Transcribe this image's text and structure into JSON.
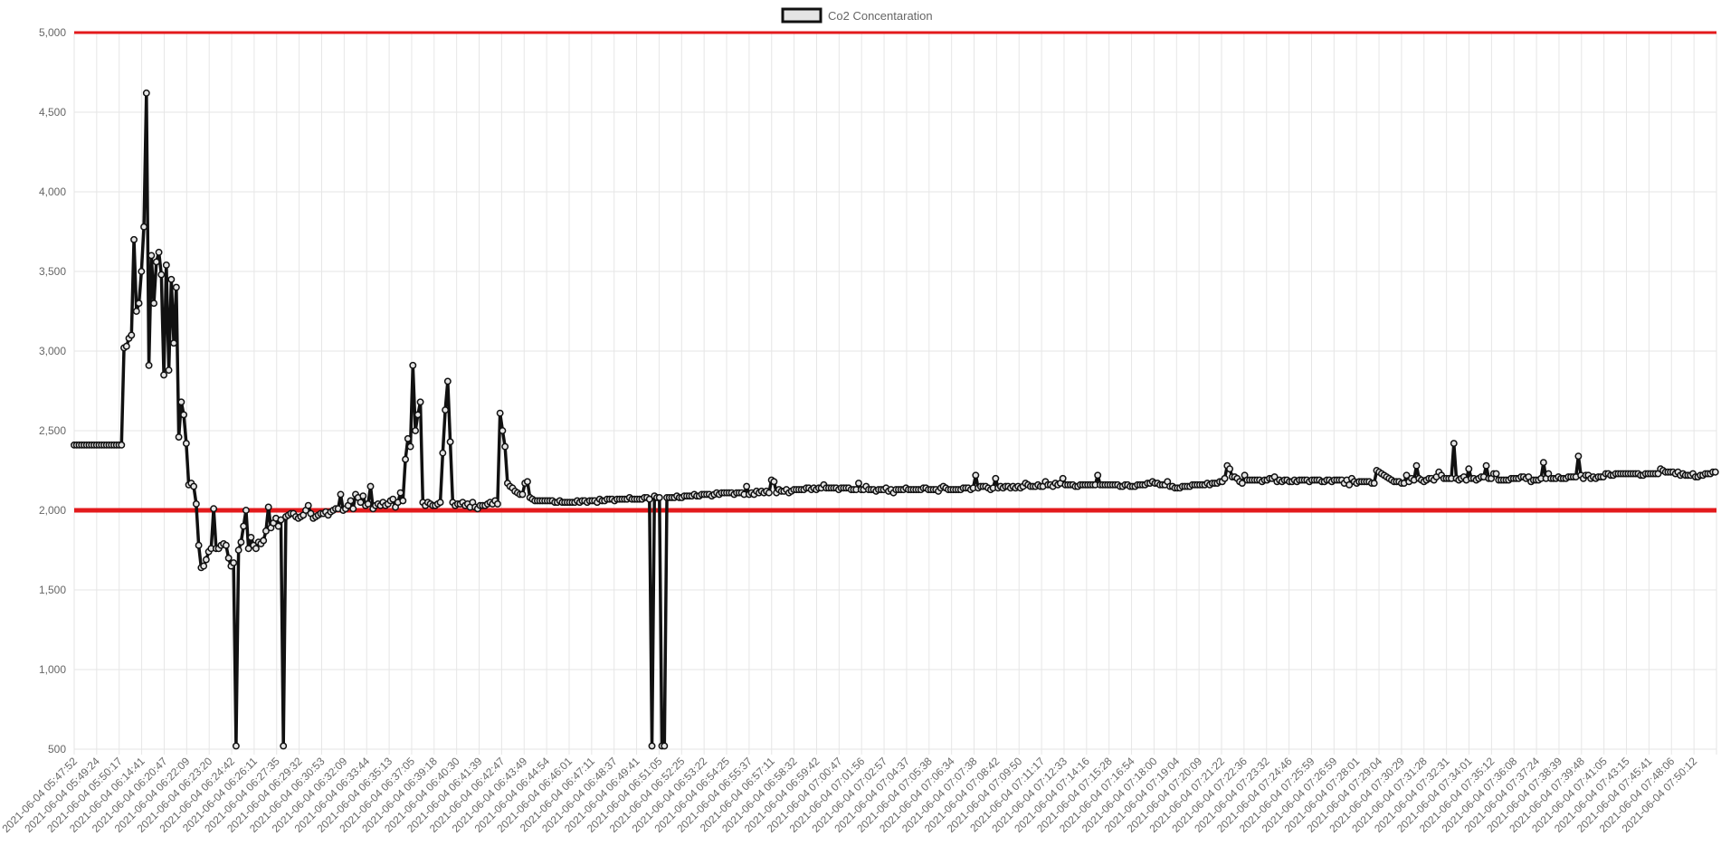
{
  "chart_data": {
    "type": "line",
    "legend": {
      "label": "Co2 Concentaration",
      "position": "top"
    },
    "y_axis": {
      "min": 500,
      "max": 5000,
      "ticks": [
        500,
        1000,
        1500,
        2000,
        2500,
        3000,
        3500,
        4000,
        4500,
        5000
      ],
      "tick_labels": [
        "500",
        "1,000",
        "1,500",
        "2,000",
        "2,500",
        "3,000",
        "3,500",
        "4,000",
        "4,500",
        "5,000"
      ]
    },
    "x_axis": {
      "tick_labels": [
        "2021-06-04 05:47:52",
        "2021-06-04 05:49:24",
        "2021-06-04 05:50:17",
        "2021-06-04 06:14:41",
        "2021-06-04 06:20:47",
        "2021-06-04 06:22:09",
        "2021-06-04 06:23:20",
        "2021-06-04 06:24:42",
        "2021-06-04 06:26:11",
        "2021-06-04 06:27:35",
        "2021-06-04 06:29:32",
        "2021-06-04 06:30:53",
        "2021-06-04 06:32:09",
        "2021-06-04 06:33:44",
        "2021-06-04 06:35:13",
        "2021-06-04 06:37:05",
        "2021-06-04 06:39:18",
        "2021-06-04 06:40:30",
        "2021-06-04 06:41:39",
        "2021-06-04 06:42:47",
        "2021-06-04 06:43:49",
        "2021-06-04 06:44:54",
        "2021-06-04 06:46:01",
        "2021-06-04 06:47:11",
        "2021-06-04 06:48:37",
        "2021-06-04 06:49:41",
        "2021-06-04 06:51:05",
        "2021-06-04 06:52:25",
        "2021-06-04 06:53:22",
        "2021-06-04 06:54:25",
        "2021-06-04 06:55:37",
        "2021-06-04 06:57:11",
        "2021-06-04 06:58:32",
        "2021-06-04 06:59:42",
        "2021-06-04 07:00:47",
        "2021-06-04 07:01:56",
        "2021-06-04 07:02:57",
        "2021-06-04 07:04:37",
        "2021-06-04 07:05:38",
        "2021-06-04 07:06:34",
        "2021-06-04 07:07:38",
        "2021-06-04 07:08:42",
        "2021-06-04 07:09:50",
        "2021-06-04 07:11:17",
        "2021-06-04 07:12:33",
        "2021-06-04 07:14:16",
        "2021-06-04 07:15:28",
        "2021-06-04 07:16:54",
        "2021-06-04 07:18:00",
        "2021-06-04 07:19:04",
        "2021-06-04 07:20:09",
        "2021-06-04 07:21:22",
        "2021-06-04 07:22:36",
        "2021-06-04 07:23:32",
        "2021-06-04 07:24:46",
        "2021-06-04 07:25:59",
        "2021-06-04 07:26:59",
        "2021-06-04 07:28:01",
        "2021-06-04 07:29:04",
        "2021-06-04 07:30:29",
        "2021-06-04 07:31:28",
        "2021-06-04 07:32:31",
        "2021-06-04 07:34:01",
        "2021-06-04 07:35:12",
        "2021-06-04 07:36:08",
        "2021-06-04 07:37:24",
        "2021-06-04 07:38:39",
        "2021-06-04 07:39:48",
        "2021-06-04 07:41:05",
        "2021-06-04 07:43:15",
        "2021-06-04 07:45:41",
        "2021-06-04 07:48:06",
        "2021-06-04 07:50:12"
      ]
    },
    "reference_lines": [
      {
        "value": 5000,
        "color": "#e31a1c"
      },
      {
        "value": 2000,
        "color": "#e31a1c"
      }
    ],
    "series": [
      {
        "name": "Co2 Concentaration",
        "color": "#111111",
        "fill": "#e5e5e5",
        "x_start": 0,
        "x_end": 72,
        "values": [
          2410,
          2410,
          2410,
          2410,
          2410,
          2410,
          2410,
          2410,
          2410,
          2410,
          2410,
          2410,
          2410,
          2410,
          2410,
          2410,
          2410,
          2410,
          2410,
          2410,
          3020,
          3030,
          3080,
          3100,
          3700,
          3250,
          3300,
          3500,
          3780,
          4620,
          2910,
          3600,
          3300,
          3560,
          3620,
          3480,
          2850,
          3540,
          2880,
          3450,
          3050,
          3400,
          2460,
          2680,
          2600,
          2420,
          2160,
          2170,
          2150,
          2040,
          1780,
          1640,
          1650,
          1690,
          1740,
          1760,
          2010,
          1760,
          1760,
          1780,
          1790,
          1780,
          1700,
          1650,
          1670,
          520,
          1750,
          1800,
          1900,
          2000,
          1760,
          1830,
          1780,
          1760,
          1800,
          1790,
          1810,
          1870,
          2020,
          1890,
          1920,
          1950,
          1900,
          1940,
          520,
          1960,
          1970,
          1980,
          1980,
          1960,
          1950,
          1960,
          1970,
          2000,
          2030,
          1980,
          1950,
          1960,
          1970,
          1980,
          1980,
          1990,
          1970,
          1990,
          2000,
          2010,
          2010,
          2100,
          2000,
          2010,
          2030,
          2060,
          2010,
          2100,
          2080,
          2050,
          2090,
          2030,
          2040,
          2150,
          2010,
          2030,
          2040,
          2030,
          2050,
          2030,
          2040,
          2060,
          2070,
          2020,
          2050,
          2110,
          2060,
          2320,
          2450,
          2400,
          2910,
          2500,
          2600,
          2680,
          2050,
          2030,
          2050,
          2040,
          2030,
          2030,
          2040,
          2050,
          2360,
          2630,
          2810,
          2430,
          2050,
          2030,
          2040,
          2040,
          2050,
          2030,
          2040,
          2020,
          2050,
          2020,
          2010,
          2030,
          2030,
          2030,
          2040,
          2050,
          2040,
          2060,
          2040,
          2610,
          2500,
          2400,
          2170,
          2150,
          2140,
          2120,
          2110,
          2100,
          2100,
          2170,
          2180,
          2080,
          2070,
          2060,
          2060,
          2060,
          2060,
          2060,
          2060,
          2060,
          2060,
          2050,
          2050,
          2060,
          2050,
          2050,
          2050,
          2050,
          2050,
          2050,
          2060,
          2050,
          2060,
          2060,
          2050,
          2060,
          2060,
          2060,
          2050,
          2070,
          2060,
          2060,
          2070,
          2070,
          2070,
          2060,
          2070,
          2070,
          2070,
          2070,
          2070,
          2080,
          2070,
          2070,
          2070,
          2070,
          2070,
          2080,
          2080,
          2070,
          520,
          2090,
          2080,
          2080,
          520,
          520,
          2080,
          2080,
          2080,
          2080,
          2090,
          2080,
          2080,
          2090,
          2090,
          2090,
          2090,
          2100,
          2090,
          2090,
          2100,
          2100,
          2100,
          2100,
          2090,
          2100,
          2110,
          2100,
          2110,
          2110,
          2110,
          2110,
          2110,
          2100,
          2110,
          2110,
          2110,
          2100,
          2150,
          2100,
          2110,
          2100,
          2120,
          2110,
          2120,
          2110,
          2120,
          2110,
          2190,
          2180,
          2110,
          2130,
          2120,
          2120,
          2130,
          2110,
          2120,
          2130,
          2130,
          2130,
          2130,
          2130,
          2140,
          2140,
          2130,
          2140,
          2130,
          2140,
          2140,
          2160,
          2140,
          2140,
          2140,
          2140,
          2140,
          2130,
          2140,
          2140,
          2140,
          2140,
          2130,
          2130,
          2130,
          2170,
          2130,
          2130,
          2150,
          2130,
          2130,
          2130,
          2120,
          2130,
          2130,
          2130,
          2140,
          2120,
          2130,
          2110,
          2130,
          2130,
          2130,
          2130,
          2140,
          2130,
          2130,
          2130,
          2130,
          2130,
          2130,
          2140,
          2140,
          2130,
          2130,
          2130,
          2130,
          2120,
          2140,
          2150,
          2140,
          2130,
          2130,
          2130,
          2130,
          2130,
          2130,
          2140,
          2140,
          2140,
          2130,
          2140,
          2220,
          2140,
          2150,
          2150,
          2150,
          2140,
          2130,
          2140,
          2200,
          2140,
          2150,
          2140,
          2150,
          2150,
          2140,
          2150,
          2140,
          2150,
          2140,
          2150,
          2170,
          2160,
          2150,
          2150,
          2150,
          2160,
          2150,
          2150,
          2180,
          2160,
          2160,
          2150,
          2170,
          2160,
          2170,
          2200,
          2160,
          2160,
          2160,
          2160,
          2150,
          2150,
          2160,
          2160,
          2160,
          2160,
          2160,
          2160,
          2160,
          2220,
          2160,
          2160,
          2160,
          2160,
          2160,
          2160,
          2160,
          2160,
          2150,
          2150,
          2160,
          2160,
          2150,
          2150,
          2150,
          2160,
          2160,
          2160,
          2160,
          2170,
          2170,
          2180,
          2170,
          2170,
          2160,
          2160,
          2160,
          2180,
          2150,
          2150,
          2140,
          2140,
          2140,
          2150,
          2150,
          2150,
          2150,
          2160,
          2160,
          2160,
          2160,
          2160,
          2160,
          2170,
          2160,
          2170,
          2170,
          2170,
          2180,
          2180,
          2200,
          2280,
          2260,
          2210,
          2210,
          2200,
          2180,
          2170,
          2220,
          2190,
          2190,
          2190,
          2190,
          2190,
          2190,
          2180,
          2190,
          2190,
          2200,
          2200,
          2210,
          2180,
          2190,
          2180,
          2190,
          2190,
          2180,
          2180,
          2190,
          2180,
          2190,
          2190,
          2190,
          2190,
          2180,
          2190,
          2190,
          2190,
          2190,
          2180,
          2180,
          2190,
          2190,
          2180,
          2190,
          2190,
          2190,
          2190,
          2170,
          2190,
          2160,
          2200,
          2180,
          2170,
          2180,
          2180,
          2180,
          2180,
          2180,
          2170,
          2170,
          2250,
          2240,
          2230,
          2220,
          2210,
          2200,
          2190,
          2180,
          2180,
          2180,
          2170,
          2170,
          2220,
          2180,
          2200,
          2190,
          2280,
          2200,
          2190,
          2180,
          2190,
          2200,
          2200,
          2190,
          2210,
          2240,
          2220,
          2200,
          2200,
          2200,
          2200,
          2420,
          2200,
          2190,
          2200,
          2210,
          2190,
          2260,
          2200,
          2200,
          2190,
          2200,
          2210,
          2210,
          2280,
          2200,
          2200,
          2230,
          2230,
          2190,
          2190,
          2190,
          2190,
          2190,
          2200,
          2200,
          2200,
          2200,
          2210,
          2210,
          2200,
          2210,
          2180,
          2190,
          2190,
          2190,
          2200,
          2300,
          2200,
          2230,
          2200,
          2200,
          2200,
          2210,
          2200,
          2200,
          2200,
          2210,
          2210,
          2210,
          2210,
          2340,
          2220,
          2200,
          2220,
          2220,
          2200,
          2210,
          2200,
          2210,
          2210,
          2210,
          2230,
          2230,
          2220,
          2220,
          2230,
          2230,
          2230,
          2230,
          2230,
          2230,
          2230,
          2230,
          2230,
          2230,
          2220,
          2220,
          2230,
          2230,
          2230,
          2230,
          2230,
          2230,
          2260,
          2250,
          2240,
          2240,
          2240,
          2240,
          2230,
          2240,
          2220,
          2230,
          2220,
          2220,
          2220,
          2230,
          2210,
          2210,
          2220,
          2220,
          2230,
          2230,
          2230,
          2240,
          2240
        ]
      }
    ]
  }
}
